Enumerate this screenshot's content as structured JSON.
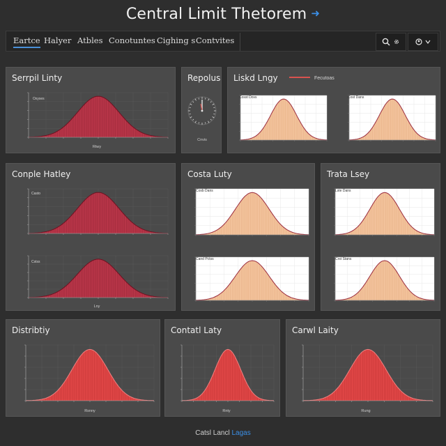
{
  "page": {
    "title": "Central Limit Thetorem"
  },
  "nav": {
    "tabs": [
      "Eartce",
      "Halyer",
      "Atbles",
      "Conotuntes",
      "Cighing s",
      "Contvites"
    ],
    "active_index": 0,
    "tools": [
      "search-icon",
      "settings-icon",
      "user-icon"
    ]
  },
  "panels": [
    {
      "title": "Serrpil Linty",
      "inset_label": "Oxyses",
      "xlabel": "Rtwy"
    },
    {
      "title": "Repolus",
      "caption": "Cnvis"
    },
    {
      "title": "Liskd Lngy",
      "legend": "Fecutoas",
      "plots": [
        {
          "inset_label": "Cosst Dovs"
        },
        {
          "inset_label": "Cost Dans"
        }
      ]
    },
    {
      "title": "Conple Hatley",
      "plots": [
        {
          "inset_label": "Casto"
        },
        {
          "inset_label": "Cstss",
          "xlabel": "Lny"
        }
      ]
    },
    {
      "title": "Costa Luty",
      "plots": [
        {
          "inset_label": "Cosb Dans"
        },
        {
          "inset_label": "Cand Pctss"
        }
      ]
    },
    {
      "title": "Trata Lsey",
      "plots": [
        {
          "inset_label": "Lste Dans"
        },
        {
          "inset_label": "Crst Stans"
        }
      ]
    },
    {
      "title": "Distribtiy",
      "xlabel": "Rsnny"
    },
    {
      "title": "Contatl Laty",
      "xlabel": "Rnty"
    },
    {
      "title": "Carwl Laity",
      "xlabel": "Rung"
    }
  ],
  "footer": {
    "text": "Catsl Lancl",
    "link": "Lagas"
  },
  "colors": {
    "bell_red_fill": "#b73548",
    "bell_red_line": "#6d1221",
    "bell_peach_fill": "#f2c29b",
    "bell_peach_line": "#9a2b3d",
    "bell_bright_fill": "#df4646",
    "link": "#3b8fe6"
  }
}
